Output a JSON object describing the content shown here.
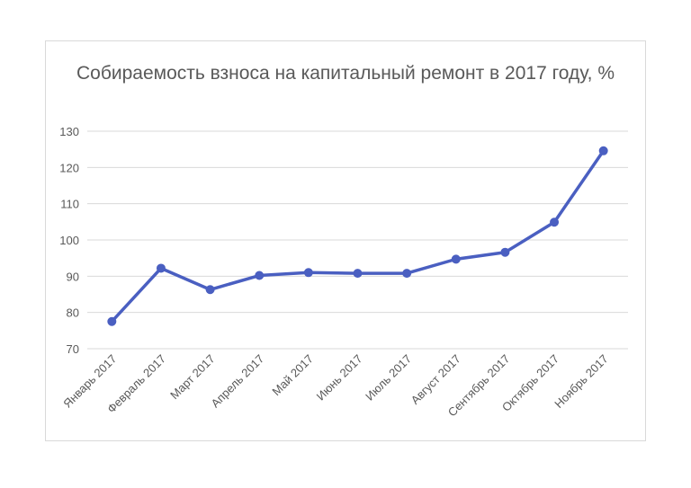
{
  "chart_data": {
    "type": "line",
    "title": "Собираемость взноса на капитальный ремонт в 2017 году, %",
    "categories": [
      "Январь 2017",
      "Февраль 2017",
      "Март 2017",
      "Апрель 2017",
      "Май 2017",
      "Июнь 2017",
      "Июль 2017",
      "Август 2017",
      "Сентябрь 2017",
      "Октябрь 2017",
      "Ноябрь 2017"
    ],
    "series": [
      {
        "values": [
          77.5,
          92.2,
          86.3,
          90.2,
          91.0,
          90.8,
          90.8,
          94.7,
          96.6,
          104.9,
          124.6
        ],
        "color": "#4a5fc1"
      }
    ],
    "ylim": [
      70,
      130
    ],
    "yticks": [
      70,
      80,
      90,
      100,
      110,
      120,
      130
    ],
    "xlabel": "",
    "ylabel": "",
    "grid": true,
    "legend": "none"
  }
}
